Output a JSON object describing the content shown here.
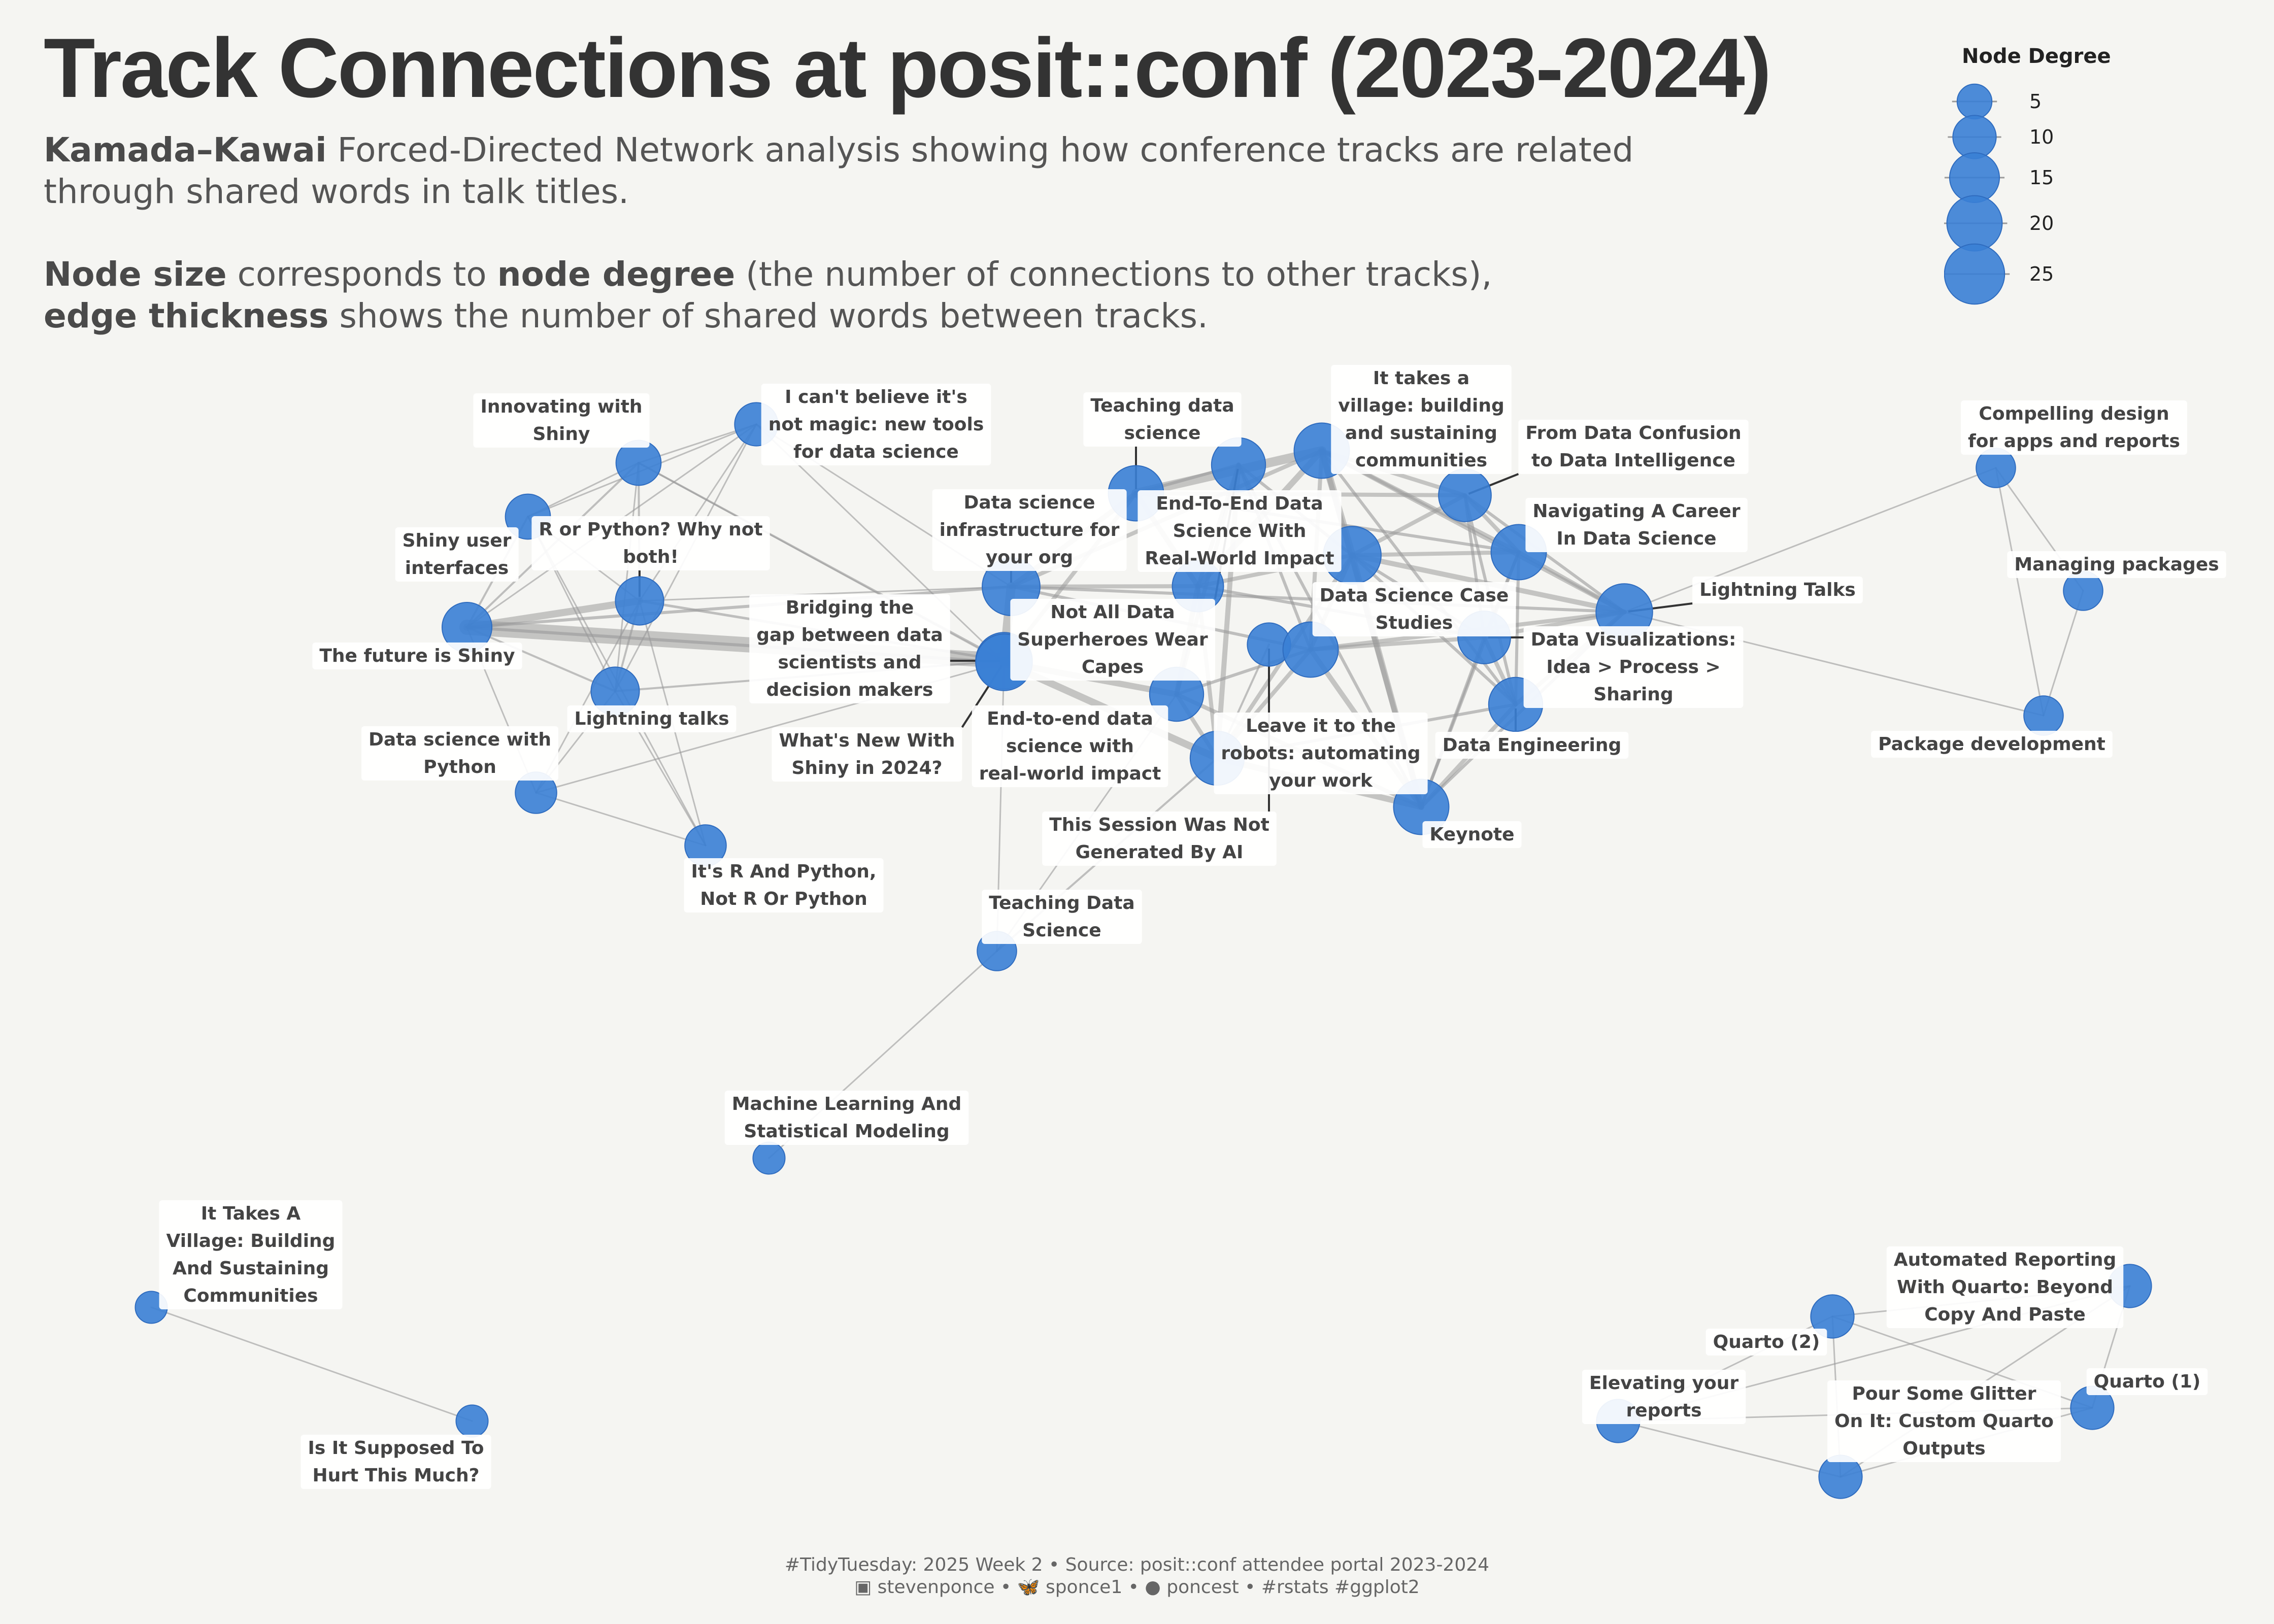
{
  "title": "Track Connections at posit::conf (2023-2024)",
  "subtitle": {
    "line1_bold": "Kamada–Kawai",
    "line1_rest": " Forced-Directed Network analysis showing how conference tracks are related",
    "line2": "through shared words in talk titles.",
    "line3_bold1": "Node size",
    "line3_mid": " corresponds to ",
    "line3_bold2": "node degree",
    "line3_rest": " (the number of connections to other tracks),",
    "line4_bold": "edge thickness",
    "line4_rest": " shows the number of shared words between tracks."
  },
  "legend": {
    "title": "Node Degree",
    "items": [
      "5",
      "10",
      "15",
      "20",
      "25"
    ]
  },
  "colors": {
    "node": "#3a7fd5",
    "edge": "#9a9a9a",
    "background": "#f5f5f2"
  },
  "nodes": [
    {
      "id": "innov",
      "label": "Innovating with\nShiny",
      "degree": 9
    },
    {
      "id": "magic",
      "label": "I can't believe it's\nnot magic: new tools\nfor data science",
      "degree": 8
    },
    {
      "id": "shinyui",
      "label": "Shiny user\ninterfaces",
      "degree": 9
    },
    {
      "id": "rpy",
      "label": "R or Python? Why not\nboth!",
      "degree": 11
    },
    {
      "id": "future",
      "label": "The future is Shiny",
      "degree": 12
    },
    {
      "id": "lt_lower",
      "label": "Lightning talks",
      "degree": 11
    },
    {
      "id": "dspy",
      "label": "Data science with\nPython",
      "degree": 7
    },
    {
      "id": "rpy2",
      "label": "It's R And Python,\nNot R Or Python",
      "degree": 7
    },
    {
      "id": "bridge",
      "label": "Bridging the\ngap between data\nscientists and\ndecision makers",
      "degree": 17
    },
    {
      "id": "infra",
      "label": "Data science\ninfrastructure for\nyour org",
      "degree": 18
    },
    {
      "id": "shiny24",
      "label": "What's New With\nShiny in 2024?",
      "degree": 17
    },
    {
      "id": "e2e_lower",
      "label": "End-to-end data\nscience with\nreal-world impact",
      "degree": 15
    },
    {
      "id": "teachds",
      "label": "Teaching data\nscience",
      "degree": 16
    },
    {
      "id": "e2e",
      "label": "End-To-End Data\nScience With\nReal-World Impact",
      "degree": 13
    },
    {
      "id": "village",
      "label": "It takes a\nvillage: building\nand sustaining\ncommunities",
      "degree": 16
    },
    {
      "id": "notall",
      "label": "Not All Data\nSuperheroes Wear\nCapes",
      "degree": 15
    },
    {
      "id": "robots",
      "label": "Leave it to the\nrobots: automating\nyour work",
      "degree": 15
    },
    {
      "id": "notai",
      "label": "This Session Was Not\nGenerated By AI",
      "degree": 8
    },
    {
      "id": "casestudies",
      "label": "Data Science Case\nStudies",
      "degree": 16
    },
    {
      "id": "confusion",
      "label": "From Data Confusion\nto Data Intelligence",
      "degree": 14
    },
    {
      "id": "career",
      "label": "Navigating A Career\nIn Data Science",
      "degree": 16
    },
    {
      "id": "lt_upper",
      "label": "Lightning Talks",
      "degree": 17
    },
    {
      "id": "dataviz",
      "label": "Data Visualizations:\nIdea > Process >\nSharing",
      "degree": 14
    },
    {
      "id": "dataeng",
      "label": "Data Engineering",
      "degree": 15
    },
    {
      "id": "keynote",
      "label": "Keynote",
      "degree": 16
    },
    {
      "id": "teachDS2",
      "label": "Teaching Data\nScience",
      "degree": 6
    },
    {
      "id": "mlstat",
      "label": "Machine Learning And\nStatistical Modeling",
      "degree": 3
    },
    {
      "id": "compelling",
      "label": "Compelling design\nfor apps and reports",
      "degree": 6
    },
    {
      "id": "packages",
      "label": "Managing packages",
      "degree": 6
    },
    {
      "id": "pkgdev",
      "label": "Package development",
      "degree": 6
    },
    {
      "id": "villageB",
      "label": "It Takes A\nVillage: Building\nAnd Sustaining\nCommunities",
      "degree": 3
    },
    {
      "id": "hurt",
      "label": "Is It Supposed To\nHurt This Much?",
      "degree": 3
    },
    {
      "id": "autoreport",
      "label": "Automated Reporting\nWith Quarto: Beyond\nCopy And Paste",
      "degree": 8
    },
    {
      "id": "quarto2",
      "label": "Quarto (2)",
      "degree": 8
    },
    {
      "id": "quarto1",
      "label": "Quarto (1)",
      "degree": 8
    },
    {
      "id": "elevating",
      "label": "Elevating your\nreports",
      "degree": 8
    },
    {
      "id": "glitter",
      "label": "Pour Some Glitter\nOn It: Custom Quarto\nOutputs",
      "degree": 8
    }
  ],
  "caption": {
    "line1": "#TidyTuesday: 2025 Week 2 • Source: posit::conf attendee portal 2023-2024",
    "line2": "▣ stevenponce • 🦋 sponce1 • ● poncest • #rstats #ggplot2"
  }
}
